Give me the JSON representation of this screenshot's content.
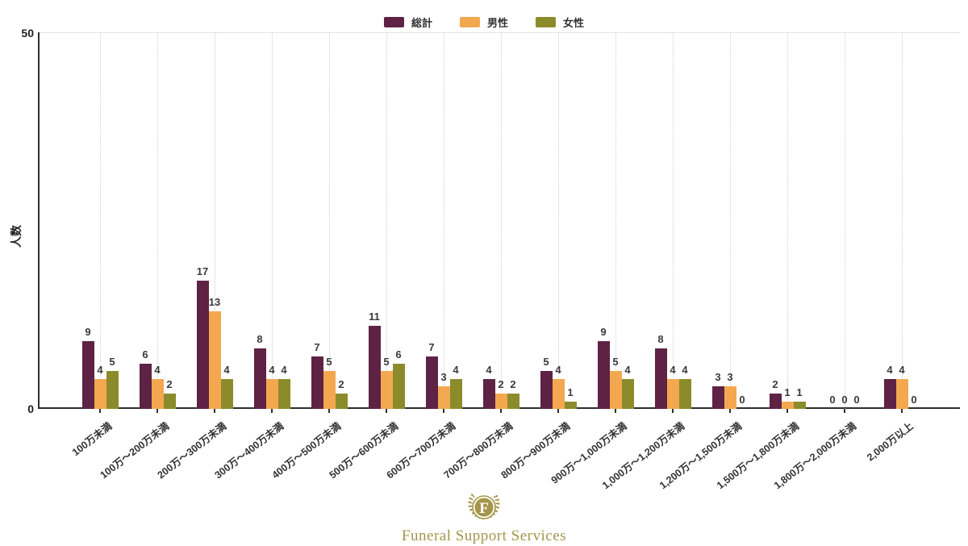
{
  "legend": {
    "items": [
      {
        "label": "総計",
        "color": "#5d2244"
      },
      {
        "label": "男性",
        "color": "#f3a84f"
      },
      {
        "label": "女性",
        "color": "#8c8b2c"
      }
    ]
  },
  "axis": {
    "y_top_label": "50",
    "y_bottom_label": "0",
    "y_title": "人数"
  },
  "chart_data": {
    "type": "bar",
    "title": "",
    "xlabel": "",
    "ylabel": "人数",
    "ylim": [
      0,
      50
    ],
    "yticks": [
      0,
      50
    ],
    "grid": "vertical-dotted",
    "legend_position": "top-center",
    "bar_value_labels": true,
    "categories": [
      "100万未満",
      "100万〜200万未満",
      "200万〜300万未満",
      "300万〜400万未満",
      "400万〜500万未満",
      "500万〜600万未満",
      "600万〜700万未満",
      "700万〜800万未満",
      "800万〜900万未満",
      "900万〜1,000万未満",
      "1,000万〜1,200万未満",
      "1,200万〜1,500万未満",
      "1,500万〜1,800万未満",
      "1,800万〜2,000万未満",
      "2,000万以上"
    ],
    "series": [
      {
        "name": "総計",
        "color": "#5d2244",
        "values": [
          9,
          6,
          17,
          8,
          7,
          11,
          7,
          4,
          5,
          9,
          8,
          3,
          2,
          0,
          4
        ]
      },
      {
        "name": "男性",
        "color": "#f3a84f",
        "values": [
          4,
          4,
          13,
          4,
          5,
          5,
          3,
          2,
          4,
          5,
          4,
          3,
          1,
          0,
          4
        ]
      },
      {
        "name": "女性",
        "color": "#8c8b2c",
        "values": [
          5,
          2,
          4,
          4,
          2,
          6,
          4,
          2,
          1,
          4,
          4,
          0,
          1,
          0,
          0
        ]
      }
    ]
  },
  "footer": {
    "logo_letter": "F",
    "logo_text": "Funeral Support Services",
    "logo_color": "#a3964a"
  }
}
